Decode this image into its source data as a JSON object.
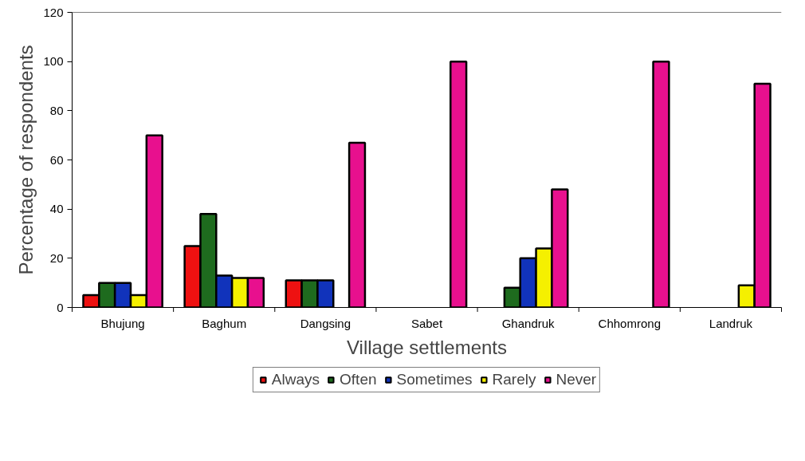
{
  "chart_data": {
    "type": "bar",
    "xlabel": "Village settlements",
    "ylabel": "Percentage of respondents",
    "categories": [
      "Bhujung",
      "Baghum",
      "Dangsing",
      "Sabet",
      "Ghandruk",
      "Chhomrong",
      "Landruk"
    ],
    "series": [
      {
        "name": "Always",
        "color": "#ee1111",
        "values": [
          5,
          25,
          11,
          null,
          null,
          null,
          null
        ]
      },
      {
        "name": "Often",
        "color": "#1e6b1e",
        "values": [
          10,
          38,
          11,
          null,
          8,
          null,
          null
        ]
      },
      {
        "name": "Sometimes",
        "color": "#1133bb",
        "values": [
          10,
          13,
          11,
          null,
          20,
          null,
          null
        ]
      },
      {
        "name": "Rarely",
        "color": "#f5f000",
        "values": [
          5,
          12,
          null,
          null,
          24,
          null,
          9
        ]
      },
      {
        "name": "Never",
        "color": "#e8108e",
        "values": [
          70,
          12,
          67,
          100,
          48,
          100,
          91
        ]
      }
    ],
    "ylim": [
      0,
      120
    ],
    "yticks": [
      0,
      20,
      40,
      60,
      80,
      100,
      120
    ],
    "grid": false,
    "legend": "bottom"
  }
}
